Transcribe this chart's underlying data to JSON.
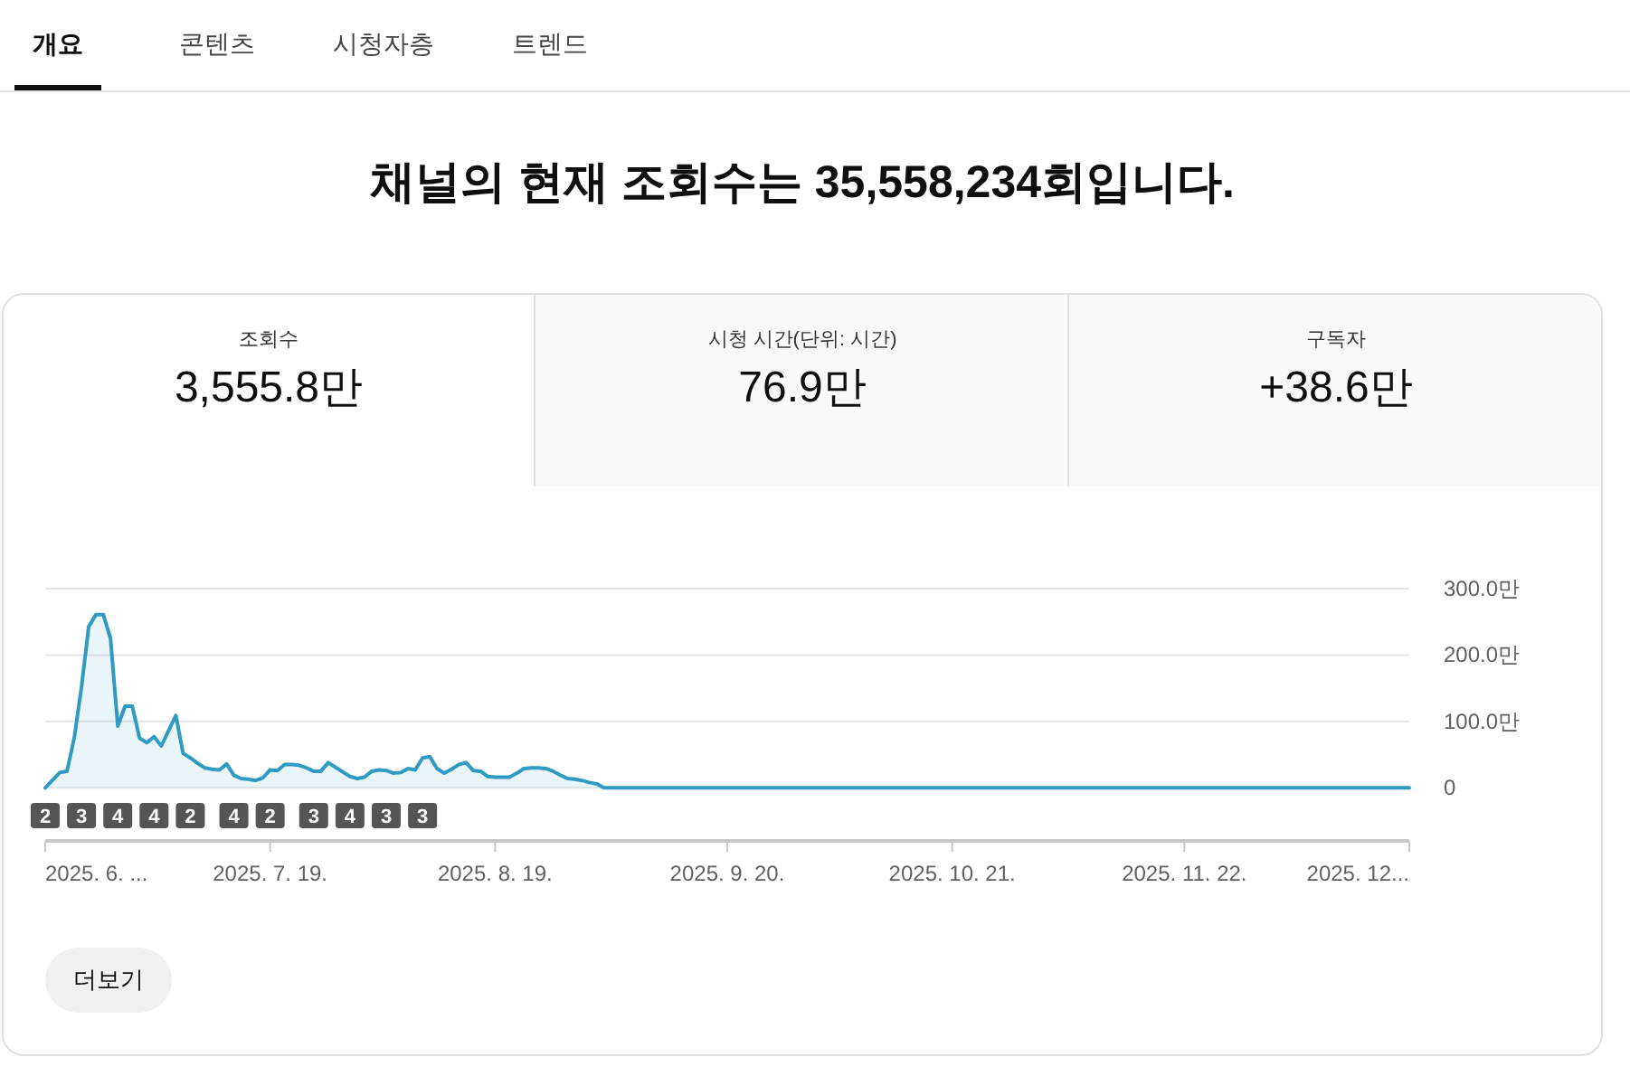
{
  "chart_data": [
    {
      "type": "other",
      "title": "채널의 현재 조회수는 35,558,234회입니다.",
      "annotations": [
        "개요",
        "콘텐츠",
        "시청자층",
        "트렌드",
        "조회수",
        "3,555.8만",
        "시청 시간(단위: 시간)",
        "76.9만",
        "구독자",
        "+38.6만",
        "더보기"
      ]
    },
    {
      "type": "area",
      "color": "#2f9bc2",
      "grid": "y",
      "marker": "none",
      "line_style": "solid",
      "x": [
        "2025-06-18",
        "2025-06-20",
        "2025-06-21",
        "2025-06-22",
        "2025-06-23",
        "2025-06-24",
        "2025-06-25",
        "2025-06-26",
        "2025-06-27",
        "2025-06-28",
        "2025-06-29",
        "2025-06-30",
        "2025-07-01",
        "2025-07-02",
        "2025-07-03",
        "2025-07-04",
        "2025-07-05",
        "2025-07-06",
        "2025-07-07",
        "2025-07-08",
        "2025-07-09",
        "2025-07-10",
        "2025-07-11",
        "2025-07-12",
        "2025-07-13",
        "2025-07-14",
        "2025-07-15",
        "2025-07-16",
        "2025-07-17",
        "2025-07-18",
        "2025-07-19",
        "2025-07-20",
        "2025-07-21",
        "2025-07-22",
        "2025-07-23",
        "2025-07-24",
        "2025-07-25",
        "2025-07-26",
        "2025-07-27",
        "2025-07-28",
        "2025-07-29",
        "2025-07-30",
        "2025-07-31",
        "2025-08-01",
        "2025-08-02",
        "2025-08-03",
        "2025-08-04",
        "2025-08-05",
        "2025-08-06",
        "2025-08-07",
        "2025-08-08",
        "2025-08-09",
        "2025-08-10",
        "2025-08-11",
        "2025-08-12",
        "2025-08-13",
        "2025-08-14",
        "2025-08-15",
        "2025-08-16",
        "2025-08-17",
        "2025-08-18",
        "2025-08-19",
        "2025-08-20",
        "2025-08-21",
        "2025-08-22",
        "2025-08-23",
        "2025-08-24",
        "2025-08-25",
        "2025-08-26",
        "2025-08-27",
        "2025-08-28",
        "2025-08-29",
        "2025-08-30",
        "2025-08-31",
        "2025-09-01",
        "2025-09-02",
        "2025-09-03",
        "2025-12-23"
      ],
      "values": [
        0,
        23,
        25,
        75,
        152,
        243,
        261,
        261,
        225,
        93,
        123,
        123,
        75,
        68,
        77,
        63,
        86,
        109,
        52,
        45,
        37,
        30,
        28,
        27,
        36,
        19,
        14,
        13,
        11,
        15,
        27,
        26,
        35,
        35,
        34,
        30,
        25,
        25,
        38,
        31,
        24,
        17,
        14,
        16,
        25,
        27,
        26,
        22,
        23,
        29,
        27,
        45,
        47,
        29,
        22,
        28,
        35,
        38,
        26,
        25,
        17,
        16,
        16,
        16,
        22,
        29,
        30,
        30,
        29,
        25,
        19,
        14,
        13,
        11,
        8,
        6,
        0,
        0
      ],
      "xlim": [
        "2025-06-18",
        "2025-12-23"
      ],
      "xticks": [
        {
          "value": "2025-06-18",
          "label": "2025. 6. ..."
        },
        {
          "value": "2025-07-19",
          "label": "2025. 7. 19."
        },
        {
          "value": "2025-08-19",
          "label": "2025. 8. 19."
        },
        {
          "value": "2025-09-20",
          "label": "2025. 9. 20."
        },
        {
          "value": "2025-10-21",
          "label": "2025. 10. 21."
        },
        {
          "value": "2025-11-22",
          "label": "2025. 11. 22."
        },
        {
          "value": "2025-12-23",
          "label": "2025. 12..."
        }
      ],
      "ylim": [
        -80,
        300
      ],
      "yticks": [
        {
          "value": 0,
          "label": "0"
        },
        {
          "value": 100,
          "label": "100.0만"
        },
        {
          "value": 200,
          "label": "200.0만"
        },
        {
          "value": 300,
          "label": "300.0만"
        }
      ],
      "annotations": [
        {
          "text": "2",
          "x": "2025-06-18"
        },
        {
          "text": "3",
          "x": "2025-06-23"
        },
        {
          "text": "4",
          "x": "2025-06-28"
        },
        {
          "text": "4",
          "x": "2025-07-03"
        },
        {
          "text": "2",
          "x": "2025-07-08"
        },
        {
          "text": "4",
          "x": "2025-07-14"
        },
        {
          "text": "2",
          "x": "2025-07-19"
        },
        {
          "text": "3",
          "x": "2025-07-25"
        },
        {
          "text": "4",
          "x": "2025-07-30"
        },
        {
          "text": "3",
          "x": "2025-08-04"
        },
        {
          "text": "3",
          "x": "2025-08-09"
        }
      ]
    }
  ]
}
